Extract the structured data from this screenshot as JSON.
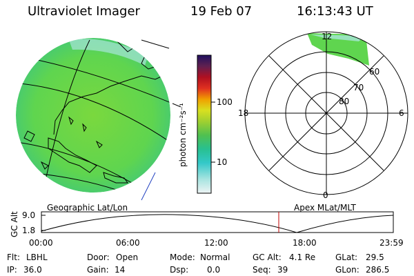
{
  "header": {
    "instrument": "Ultraviolet Imager",
    "date": "19 Feb 07",
    "time": "16:13:43 UT"
  },
  "colorbar": {
    "unit_label": "photon cm⁻²s⁻¹",
    "ticks": [
      "100",
      "10"
    ],
    "colors": [
      "#e6f0ee",
      "#a8e4e0",
      "#33c8c8",
      "#28c090",
      "#50c050",
      "#a0d030",
      "#d8e020",
      "#f0a000",
      "#e03020",
      "#b01020",
      "#602050",
      "#201060"
    ]
  },
  "globe": {
    "title": "Geographic Lat/Lon",
    "fill_color": "#5fd54f",
    "ocean_tint": "#4ec86a"
  },
  "polar": {
    "title": "Apex MLat/MLT",
    "mlt_labels": {
      "top": "12",
      "left": "18",
      "right": "6",
      "bottom": "0"
    },
    "mlat_labels": [
      "60",
      "70",
      "80"
    ]
  },
  "altitude_plot": {
    "ylabel": "GC Alt",
    "y_ticks": [
      "9.0",
      "1.8"
    ],
    "x_ticks": [
      "00:00",
      "06:00",
      "12:00",
      "18:00",
      "23:59"
    ],
    "current_time_marker": "16:13",
    "marker_color": "#c00000"
  },
  "status": {
    "flt_label": "Flt:",
    "flt_value": "LBHL",
    "ip_label": "IP:",
    "ip_value": "36.0",
    "door_label": "Door:",
    "door_value": "Open",
    "gain_label": "Gain:",
    "gain_value": "14",
    "mode_label": "Mode:",
    "mode_value": "Normal",
    "dsp_label": "Dsp:",
    "dsp_value": "0.0",
    "gcalt_label": "GC Alt:",
    "gcalt_value": "4.1 Re",
    "seq_label": "Seq:",
    "seq_value": "39",
    "glat_label": "GLat:",
    "glat_value": "29.5",
    "glon_label": "GLon:",
    "glon_value": "286.5"
  }
}
